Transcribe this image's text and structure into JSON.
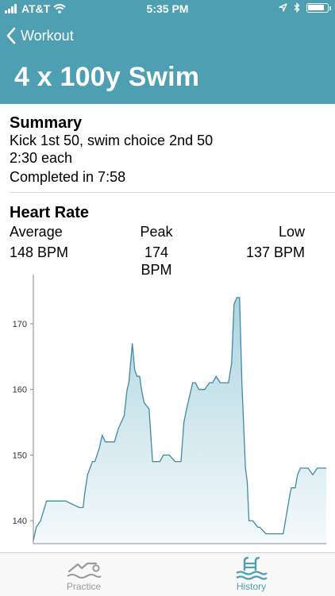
{
  "status_bar": {
    "carrier": "AT&T",
    "time": "5:35 PM",
    "battery_level": 0.9
  },
  "nav": {
    "back_label": "Workout",
    "title": "4 x 100y Swim"
  },
  "summary": {
    "heading": "Summary",
    "lines": [
      "Kick 1st 50, swim choice 2nd 50",
      "2:30 each"
    ],
    "completed": "Completed in 7:58"
  },
  "heart_rate": {
    "heading": "Heart Rate",
    "average_label": "Average",
    "average_value": "148 BPM",
    "peak_label": "Peak",
    "peak_value": "174 BPM",
    "low_label": "Low",
    "low_value": "137 BPM"
  },
  "chart_data": {
    "type": "area",
    "yticks": [
      140,
      150,
      160,
      170
    ],
    "ylim": [
      136.5,
      177.5
    ],
    "xlim": [
      0,
      100
    ],
    "x": [
      0,
      1,
      2.5,
      4.5,
      6.5,
      11,
      15.7,
      17,
      17.5,
      18.5,
      20.2,
      21,
      22.5,
      23.5,
      24.6,
      25.4,
      26.5,
      27.7,
      29,
      31,
      32,
      32.6,
      33.8,
      34.6,
      35.4,
      36.3,
      36.9,
      37.8,
      39.5,
      40.7,
      42.4,
      43.2,
      44.4,
      46.4,
      48.4,
      50.4,
      51.4,
      52.3,
      54.4,
      55.3,
      56.5,
      58.5,
      60.1,
      61.2,
      62.4,
      63.8,
      65.4,
      66.6,
      67.7,
      68.5,
      69.5,
      70.4,
      71.2,
      72.4,
      73,
      73.6,
      74.9,
      76.6,
      77.3,
      79.4,
      81.2,
      82.1,
      82.9,
      85.3,
      87.6,
      88.1,
      89.4,
      90.2,
      91.2,
      92.7,
      93.8,
      95.4,
      96.9,
      98.6,
      100
    ],
    "values": [
      137,
      139,
      140,
      143,
      143,
      143,
      142,
      142,
      144,
      147,
      149,
      149,
      151,
      153,
      152,
      152,
      152,
      152,
      154,
      156,
      160,
      161,
      167,
      163,
      162,
      162,
      160,
      158,
      157,
      149,
      149,
      149,
      150,
      150,
      149,
      149,
      155,
      157,
      161,
      161,
      160,
      160,
      161,
      161,
      162,
      161,
      161,
      161,
      164,
      173,
      174,
      174,
      161,
      148,
      146,
      140,
      140,
      139,
      139,
      138,
      138,
      138,
      138,
      138,
      144,
      145,
      145,
      147,
      148,
      148,
      148,
      147,
      148,
      148,
      148
    ]
  },
  "tabs": [
    {
      "label": "Practice",
      "active": false
    },
    {
      "label": "History",
      "active": true
    }
  ],
  "colors": {
    "header": "#4e9fb2",
    "chart_line": "#3f8aa3",
    "chart_fill": "#a9d2de",
    "tab_active": "#4e9fb2",
    "tab_inactive": "#9a9a9a"
  }
}
